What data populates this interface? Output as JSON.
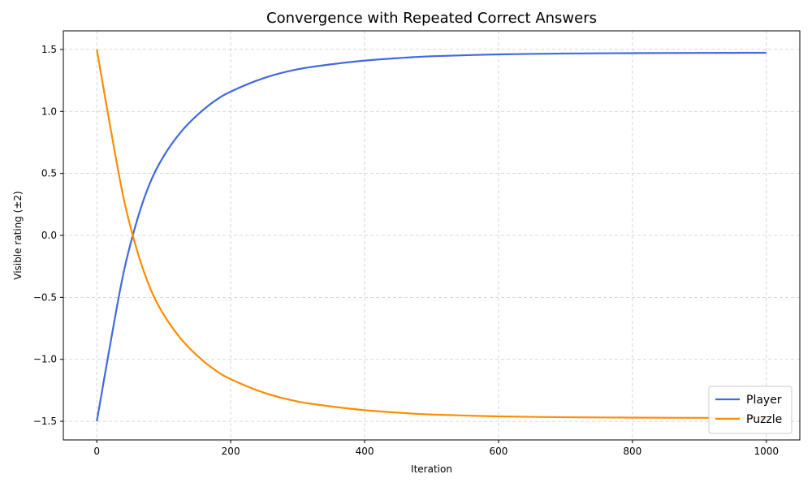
{
  "chart_data": {
    "type": "line",
    "title": "Convergence with Repeated Correct Answers",
    "xlabel": "Iteration",
    "ylabel": "Visible rating (±2)",
    "xlim": [
      -50,
      1050
    ],
    "ylim": [
      -1.65,
      1.65
    ],
    "xticks": [
      0,
      200,
      400,
      600,
      800,
      1000
    ],
    "xtick_labels": [
      "0",
      "200",
      "400",
      "600",
      "800",
      "1000"
    ],
    "yticks": [
      -1.5,
      -1.0,
      -0.5,
      0.0,
      0.5,
      1.0,
      1.5
    ],
    "ytick_labels": [
      "−1.5",
      "−1.0",
      "−0.5",
      "0.0",
      "0.5",
      "1.0",
      "1.5"
    ],
    "grid": true,
    "legend_position": "bottom-right",
    "x": [
      0,
      20,
      40,
      60,
      80,
      100,
      125,
      150,
      175,
      200,
      250,
      300,
      350,
      400,
      450,
      500,
      600,
      700,
      800,
      900,
      1000
    ],
    "series": [
      {
        "name": "Player",
        "color": "#4169e1",
        "values": [
          -1.5,
          -0.88,
          -0.3,
          0.12,
          0.43,
          0.64,
          0.83,
          0.97,
          1.08,
          1.16,
          1.27,
          1.34,
          1.38,
          1.41,
          1.43,
          1.445,
          1.46,
          1.467,
          1.47,
          1.472,
          1.473
        ]
      },
      {
        "name": "Puzzle",
        "color": "#ff8c00",
        "values": [
          1.5,
          0.88,
          0.3,
          -0.12,
          -0.43,
          -0.64,
          -0.83,
          -0.97,
          -1.08,
          -1.16,
          -1.27,
          -1.34,
          -1.38,
          -1.41,
          -1.43,
          -1.445,
          -1.46,
          -1.467,
          -1.47,
          -1.472,
          -1.473
        ]
      }
    ]
  }
}
